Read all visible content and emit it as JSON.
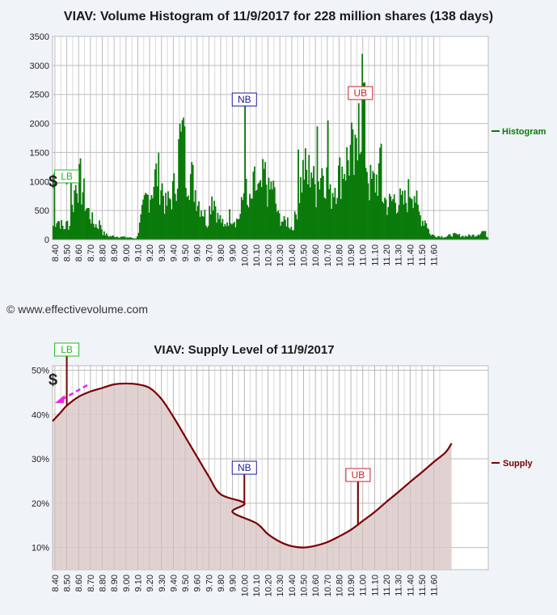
{
  "chart_data": [
    {
      "type": "bar",
      "title": "VIAV: Volume Histogram of 11/9/2017 for 228 million shares (138 days)",
      "legend": "Histogram",
      "legend_position": "right",
      "series_color": "#0a7a0a",
      "ylim": [
        0,
        3500
      ],
      "y_ticks": [
        "0",
        "500",
        "1000",
        "1500",
        "2000",
        "2500",
        "3000",
        "3500"
      ],
      "x_tick_labels": [
        "8.40",
        "8.50",
        "8.60",
        "8.70",
        "8.80",
        "8.90",
        "9.00",
        "9.10",
        "9.20",
        "9.30",
        "9.40",
        "9.50",
        "9.60",
        "9.70",
        "9.80",
        "9.90",
        "10.00",
        "10.10",
        "10.20",
        "10.30",
        "10.40",
        "10.50",
        "10.60",
        "10.70",
        "10.80",
        "10.90",
        "11.00",
        "11.10",
        "11.20",
        "11.30",
        "11.40",
        "11.50",
        "11.60"
      ],
      "xlim": [
        8.38,
        12.06
      ],
      "grid": true,
      "markers": [
        {
          "label": "LB",
          "x": 8.5,
          "color": "#22bb22",
          "value": 950
        },
        {
          "label": "NB",
          "x": 10.0,
          "color": "#1a1aa0",
          "value": 2300
        },
        {
          "label": "UB",
          "x": 10.98,
          "color": "#cc2222",
          "value": 2500
        }
      ],
      "anchors": [
        [
          8.38,
          250
        ],
        [
          8.41,
          380
        ],
        [
          8.44,
          300
        ],
        [
          8.47,
          200
        ],
        [
          8.5,
          300
        ],
        [
          8.52,
          250
        ],
        [
          8.55,
          700
        ],
        [
          8.58,
          1150
        ],
        [
          8.6,
          1000
        ],
        [
          8.63,
          900
        ],
        [
          8.66,
          600
        ],
        [
          8.7,
          400
        ],
        [
          8.72,
          300
        ],
        [
          8.75,
          250
        ],
        [
          8.78,
          300
        ],
        [
          8.8,
          120
        ],
        [
          8.85,
          60
        ],
        [
          8.9,
          60
        ],
        [
          8.95,
          50
        ],
        [
          9.0,
          40
        ],
        [
          9.05,
          30
        ],
        [
          9.08,
          20
        ],
        [
          9.1,
          150
        ],
        [
          9.13,
          450
        ],
        [
          9.16,
          700
        ],
        [
          9.2,
          850
        ],
        [
          9.23,
          1050
        ],
        [
          9.26,
          1200
        ],
        [
          9.3,
          950
        ],
        [
          9.33,
          600
        ],
        [
          9.36,
          700
        ],
        [
          9.4,
          900
        ],
        [
          9.43,
          1300
        ],
        [
          9.45,
          1800
        ],
        [
          9.47,
          1650
        ],
        [
          9.5,
          1300
        ],
        [
          9.53,
          1200
        ],
        [
          9.56,
          1050
        ],
        [
          9.58,
          900
        ],
        [
          9.6,
          750
        ],
        [
          9.63,
          600
        ],
        [
          9.65,
          500
        ],
        [
          9.68,
          300
        ],
        [
          9.7,
          550
        ],
        [
          9.72,
          850
        ],
        [
          9.75,
          650
        ],
        [
          9.77,
          400
        ],
        [
          9.8,
          350
        ],
        [
          9.82,
          200
        ],
        [
          9.85,
          350
        ],
        [
          9.88,
          450
        ],
        [
          9.9,
          400
        ],
        [
          9.93,
          350
        ],
        [
          9.96,
          450
        ],
        [
          9.98,
          700
        ],
        [
          10.0,
          1100
        ],
        [
          10.02,
          550
        ],
        [
          10.05,
          650
        ],
        [
          10.08,
          1000
        ],
        [
          10.1,
          900
        ],
        [
          10.13,
          800
        ],
        [
          10.16,
          1150
        ],
        [
          10.18,
          1050
        ],
        [
          10.2,
          800
        ],
        [
          10.23,
          1000
        ],
        [
          10.26,
          650
        ],
        [
          10.28,
          400
        ],
        [
          10.3,
          400
        ],
        [
          10.33,
          300
        ],
        [
          10.36,
          350
        ],
        [
          10.38,
          250
        ],
        [
          10.4,
          200
        ],
        [
          10.43,
          450
        ],
        [
          10.46,
          900
        ],
        [
          10.5,
          1300
        ],
        [
          10.53,
          1100
        ],
        [
          10.56,
          1400
        ],
        [
          10.58,
          1000
        ],
        [
          10.6,
          900
        ],
        [
          10.63,
          1150
        ],
        [
          10.66,
          1350
        ],
        [
          10.7,
          1000
        ],
        [
          10.72,
          750
        ],
        [
          10.75,
          1000
        ],
        [
          10.78,
          1100
        ],
        [
          10.8,
          1150
        ],
        [
          10.83,
          1350
        ],
        [
          10.86,
          1400
        ],
        [
          10.9,
          1600
        ],
        [
          10.92,
          1300
        ],
        [
          10.95,
          1550
        ],
        [
          10.98,
          2300
        ],
        [
          11.0,
          2500
        ],
        [
          11.02,
          1600
        ],
        [
          11.05,
          1000
        ],
        [
          11.08,
          1000
        ],
        [
          11.1,
          1050
        ],
        [
          11.12,
          1150
        ],
        [
          11.14,
          1200
        ],
        [
          11.16,
          800
        ],
        [
          11.2,
          650
        ],
        [
          11.23,
          650
        ],
        [
          11.26,
          750
        ],
        [
          11.3,
          700
        ],
        [
          11.33,
          650
        ],
        [
          11.36,
          700
        ],
        [
          11.4,
          950
        ],
        [
          11.43,
          900
        ],
        [
          11.46,
          500
        ],
        [
          11.5,
          350
        ],
        [
          11.53,
          350
        ],
        [
          11.56,
          100
        ],
        [
          11.6,
          70
        ],
        [
          11.65,
          60
        ],
        [
          11.7,
          50
        ],
        [
          11.75,
          90
        ],
        [
          11.8,
          80
        ],
        [
          11.85,
          60
        ],
        [
          11.9,
          70
        ],
        [
          11.95,
          80
        ],
        [
          12.0,
          150
        ],
        [
          12.02,
          150
        ],
        [
          12.05,
          40
        ]
      ],
      "spikes": [
        [
          8.39,
          1150
        ],
        [
          8.53,
          1200
        ],
        [
          8.61,
          1400
        ],
        [
          9.48,
          2100
        ],
        [
          9.49,
          1950
        ],
        [
          10.0,
          2300
        ],
        [
          10.61,
          1950
        ],
        [
          10.7,
          2050
        ],
        [
          10.96,
          2350
        ],
        [
          10.99,
          3200
        ],
        [
          11.0,
          2700
        ],
        [
          11.15,
          1650
        ],
        [
          10.45,
          1550
        ]
      ]
    },
    {
      "type": "area",
      "title": "VIAV: Supply Level of 11/9/2017",
      "legend": "Supply",
      "legend_position": "right",
      "line_color": "#7a0000",
      "fill_color": "#dccaca",
      "ylim": [
        5,
        51
      ],
      "y_ticks": [
        "10%",
        "20%",
        "30%",
        "40%",
        "50%"
      ],
      "y_tick_values": [
        10,
        20,
        30,
        40,
        50
      ],
      "x_tick_labels": [
        "8.40",
        "8.50",
        "8.60",
        "8.70",
        "8.80",
        "8.90",
        "9.00",
        "9.10",
        "9.20",
        "9.30",
        "9.40",
        "9.50",
        "9.60",
        "9.70",
        "9.80",
        "9.90",
        "10.00",
        "10.10",
        "10.20",
        "10.30",
        "10.40",
        "10.50",
        "10.60",
        "10.70",
        "10.80",
        "10.90",
        "11.00",
        "11.10",
        "11.20",
        "11.30",
        "11.40",
        "11.50",
        "11.60"
      ],
      "xlim": [
        8.38,
        12.06
      ],
      "grid": true,
      "markers": [
        {
          "label": "LB",
          "x": 8.5,
          "color": "#22bb22",
          "value": 42
        },
        {
          "label": "NB",
          "x": 10.0,
          "color": "#1a1aa0",
          "value": 20
        },
        {
          "label": "UB",
          "x": 10.96,
          "color": "#cc2222",
          "value": 15
        }
      ],
      "points": [
        [
          8.38,
          38.5
        ],
        [
          8.45,
          40.5
        ],
        [
          8.5,
          42
        ],
        [
          8.6,
          44
        ],
        [
          8.7,
          45.2
        ],
        [
          8.8,
          46
        ],
        [
          8.9,
          46.8
        ],
        [
          9.0,
          47
        ],
        [
          9.1,
          46.8
        ],
        [
          9.2,
          46
        ],
        [
          9.3,
          43.5
        ],
        [
          9.4,
          39.5
        ],
        [
          9.5,
          35
        ],
        [
          9.6,
          30.5
        ],
        [
          9.7,
          26
        ],
        [
          9.8,
          22
        ],
        [
          9.9,
          18
        ],
        [
          10.0,
          20
        ],
        [
          10.1,
          15.5
        ],
        [
          10.2,
          13
        ],
        [
          10.3,
          11.3
        ],
        [
          10.4,
          10.3
        ],
        [
          10.5,
          10
        ],
        [
          10.6,
          10.4
        ],
        [
          10.7,
          11.2
        ],
        [
          10.8,
          12.5
        ],
        [
          10.9,
          14
        ],
        [
          11.0,
          16
        ],
        [
          11.1,
          18
        ],
        [
          11.2,
          20.3
        ],
        [
          11.3,
          22.5
        ],
        [
          11.4,
          24.8
        ],
        [
          11.5,
          27
        ],
        [
          11.6,
          29.3
        ],
        [
          11.7,
          31.5
        ],
        [
          11.75,
          33.5
        ]
      ]
    }
  ],
  "copyright": "© www.effectivevolume.com",
  "dollar_sign": "$"
}
